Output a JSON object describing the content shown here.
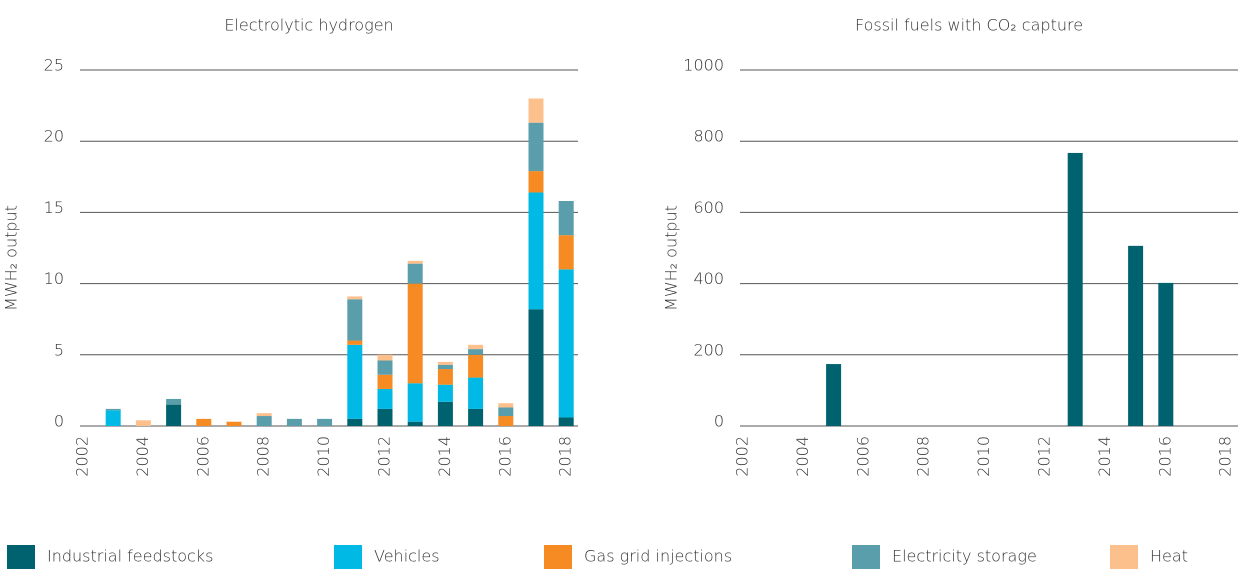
{
  "chart_data": [
    {
      "type": "stacked_bar",
      "title": "Electrolytic hydrogen",
      "ylabel": "MWH₂ output",
      "categories": [
        "2002",
        null,
        "2004",
        null,
        "2006",
        null,
        "2008",
        null,
        "2010",
        null,
        "2012",
        null,
        "2014",
        null,
        "2016",
        null,
        "2018"
      ],
      "ylim": [
        0,
        25
      ],
      "yticks": [
        0,
        5,
        10,
        15,
        20,
        25
      ],
      "grid": true,
      "series": [
        {
          "name": "Industrial feedstocks",
          "color": "#00626e",
          "values": [
            0,
            0,
            0,
            1.5,
            0,
            0,
            0,
            0,
            0,
            0.5,
            1.2,
            0.3,
            1.7,
            1.2,
            0,
            8.2,
            0.6
          ]
        },
        {
          "name": "Vehicles",
          "color": "#00b9e4",
          "values": [
            0,
            1.1,
            0,
            0,
            0,
            0,
            0,
            0,
            0,
            5.2,
            1.4,
            2.7,
            1.2,
            2.2,
            0,
            8.2,
            10.4
          ]
        },
        {
          "name": "Gas grid injections",
          "color": "#f58b22",
          "values": [
            0,
            0,
            0,
            0,
            0.5,
            0.3,
            0,
            0,
            0,
            0.3,
            1.0,
            7.0,
            1.1,
            1.6,
            0.7,
            1.5,
            2.4
          ]
        },
        {
          "name": "Electricity storage",
          "color": "#5a9eab",
          "values": [
            0,
            0.1,
            0,
            0.4,
            0,
            0,
            0.7,
            0.5,
            0.5,
            2.9,
            1.0,
            1.4,
            0.3,
            0.4,
            0.6,
            3.4,
            2.4
          ]
        },
        {
          "name": "Heat",
          "color": "#fcc08c",
          "values": [
            0,
            0,
            0.4,
            0,
            0,
            0,
            0.2,
            0,
            0,
            0.2,
            0.4,
            0.2,
            0.2,
            0.3,
            0.3,
            1.7,
            0
          ]
        }
      ]
    },
    {
      "type": "bar",
      "title": "Fossil fuels with CO₂ capture",
      "ylabel": "MWH₂ output",
      "categories": [
        "2002",
        null,
        "2004",
        null,
        "2006",
        null,
        "2008",
        null,
        "2010",
        null,
        "2012",
        null,
        "2014",
        null,
        "2016",
        null,
        "2018"
      ],
      "ylim": [
        0,
        1000
      ],
      "yticks": [
        0,
        200,
        400,
        600,
        800,
        1000
      ],
      "grid": true,
      "color": "#00626e",
      "values": [
        0,
        0,
        0,
        174,
        0,
        0,
        0,
        0,
        0,
        0,
        0,
        767,
        0,
        506,
        402,
        0,
        0
      ]
    }
  ]
}
